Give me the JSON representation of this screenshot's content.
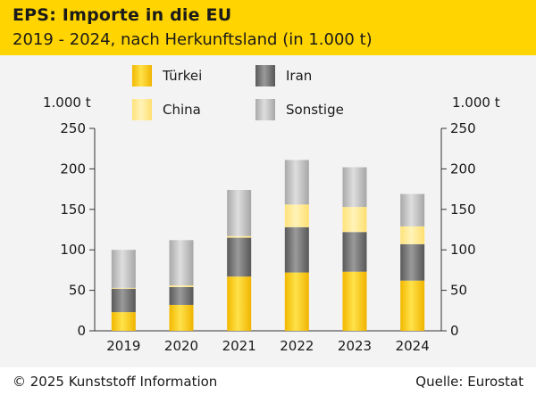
{
  "header": {
    "title": "EPS: Importe in die EU",
    "subtitle": "2019 - 2024, nach Herkunftsland (in 1.000 t)"
  },
  "footer": {
    "copyright": "© 2025 Kunststoff Information",
    "source": "Quelle: Eurostat"
  },
  "colors": {
    "header_bg": "#ffd400",
    "tuerkei": "#ffd21a",
    "iran": "#7a7a7a",
    "china": "#ffe88a",
    "sonstige": "#c4c4c4"
  },
  "chart_data": {
    "type": "bar",
    "stacked": true,
    "title": "EPS: Importe in die EU",
    "xlabel": "",
    "ylabel": "1.000 t",
    "ylabel_right": "1.000 t",
    "ylim": [
      0,
      250
    ],
    "yticks": [
      0,
      50,
      100,
      150,
      200,
      250
    ],
    "categories": [
      "2019",
      "2020",
      "2021",
      "2022",
      "2023",
      "2024"
    ],
    "series": [
      {
        "name": "Türkei",
        "values": [
          23,
          32,
          67,
          72,
          73,
          62
        ]
      },
      {
        "name": "Iran",
        "values": [
          29,
          22,
          48,
          56,
          49,
          45
        ]
      },
      {
        "name": "China",
        "values": [
          1,
          2,
          2,
          28,
          31,
          22
        ]
      },
      {
        "name": "Sonstige",
        "values": [
          47,
          56,
          57,
          55,
          49,
          40
        ]
      }
    ],
    "legend": [
      "Türkei",
      "Iran",
      "China",
      "Sonstige"
    ],
    "legend_position": "top"
  }
}
